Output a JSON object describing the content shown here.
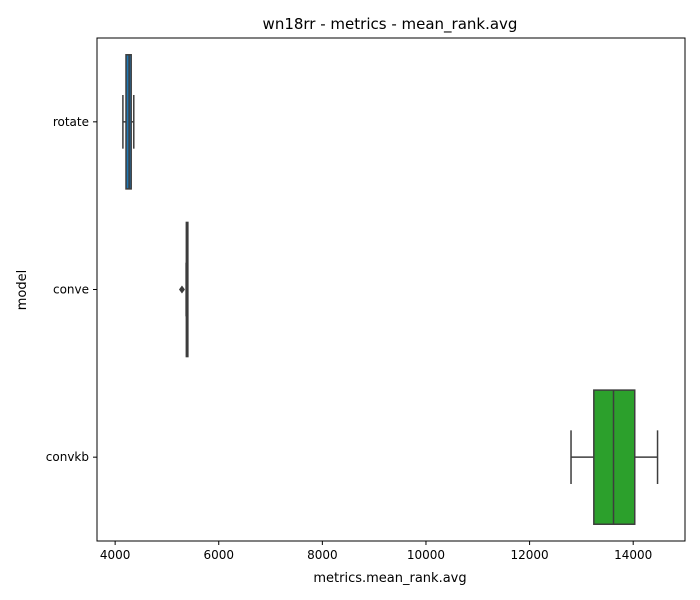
{
  "chart_data": {
    "type": "boxplot",
    "orientation": "horizontal",
    "title": "wn18rr - metrics - mean_rank.avg",
    "xlabel": "metrics.mean_rank.avg",
    "ylabel": "model",
    "xlim": [
      3650,
      15000
    ],
    "xticks": [
      4000,
      6000,
      8000,
      10000,
      12000,
      14000
    ],
    "xtick_labels": [
      "4000",
      "6000",
      "8000",
      "10000",
      "12000",
      "14000"
    ],
    "grid": false,
    "categories": [
      "rotate",
      "conve",
      "convkb"
    ],
    "boxes": [
      {
        "category": "rotate",
        "color": "#1f77b4",
        "whisker_low": 4150,
        "q1": 4210,
        "median": 4270,
        "q3": 4310,
        "whisker_high": 4360,
        "outliers": []
      },
      {
        "category": "conve",
        "color": "#ff7f0e",
        "whisker_low": 5370,
        "q1": 5375,
        "median": 5380,
        "q3": 5385,
        "whisker_high": 5395,
        "outliers": [
          5290
        ]
      },
      {
        "category": "convkb",
        "color": "#2ca02c",
        "whisker_low": 12800,
        "q1": 13240,
        "median": 13620,
        "q3": 14030,
        "whisker_high": 14470,
        "outliers": []
      }
    ]
  }
}
